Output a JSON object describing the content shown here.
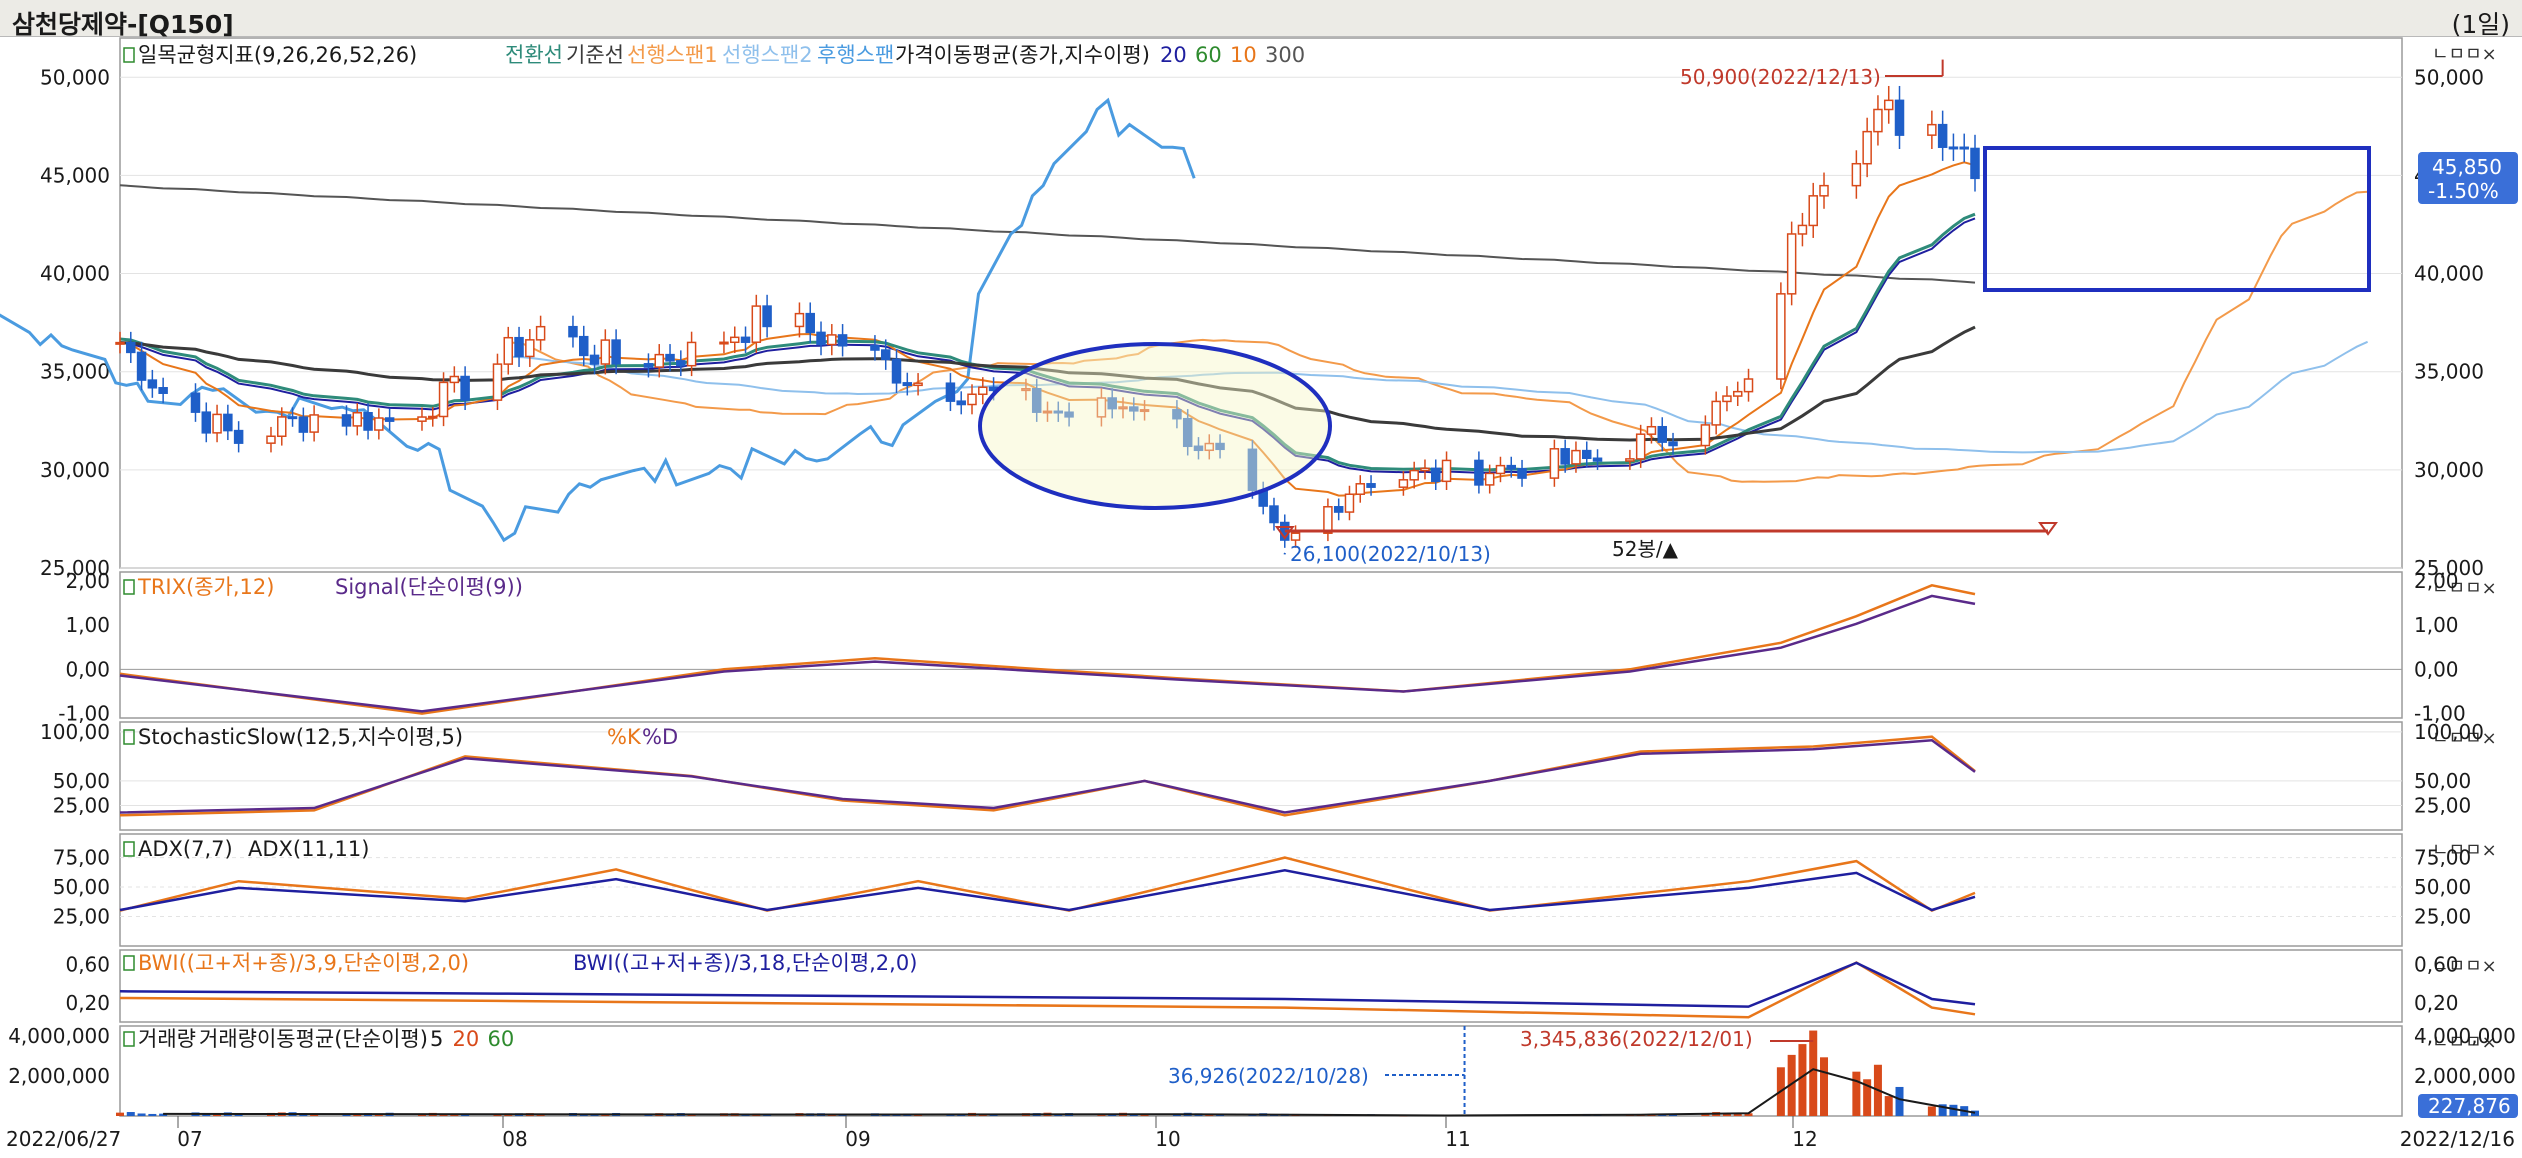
{
  "window": {
    "title": "삼천당제약-[Q150]",
    "period": "(1일)"
  },
  "dates": {
    "start": "2022/06/27",
    "end": "2022/12/16",
    "months": [
      "07",
      "08",
      "09",
      "10",
      "11",
      "12"
    ]
  },
  "panel_buttons": "ㄴㅁㅁ×",
  "price_panel": {
    "legend": [
      {
        "text": "일목균형지표(9,26,26,52,26)",
        "color": "#1a1a1a"
      },
      {
        "text": "전환선",
        "color": "#2e8b7a"
      },
      {
        "text": "기준선",
        "color": "#3a3a3a"
      },
      {
        "text": "선행스팬1",
        "color": "#f39a4a"
      },
      {
        "text": "선행스팬2",
        "color": "#8fc0ec"
      },
      {
        "text": "후행스팬",
        "color": "#4a9be0"
      },
      {
        "text": "가격이동평균(종가,지수이평)",
        "color": "#1a1a1a"
      },
      {
        "text": "20",
        "color": "#1f1f9f"
      },
      {
        "text": "60",
        "color": "#2e8b2e"
      },
      {
        "text": "10",
        "color": "#e8761a"
      },
      {
        "text": "300",
        "color": "#555555"
      }
    ],
    "y_ticks": [
      "50,000",
      "45,000",
      "40,000",
      "35,000",
      "30,000",
      "25,000"
    ],
    "last_price": "45,850",
    "last_change": "-1.50%",
    "high_annotation": "50,900(2022/12/13)",
    "low_annotation": "26,100(2022/10/13)",
    "range_label": "52봉/▲"
  },
  "trix_panel": {
    "legend": [
      {
        "text": "TRIX(종가,12)",
        "color": "#e8761a"
      },
      {
        "text": "Signal(단순이평(9))",
        "color": "#5a2a8a"
      }
    ],
    "y_ticks": [
      "2,00",
      "1,00",
      "0,00",
      "-1,00"
    ]
  },
  "stoch_panel": {
    "legend": [
      {
        "text": "StochasticSlow(12,5,지수이평,5)",
        "color": "#1a1a1a"
      },
      {
        "text": "%K",
        "color": "#e8761a"
      },
      {
        "text": "%D",
        "color": "#5a2a8a"
      }
    ],
    "y_ticks": [
      "100,00",
      "50,00",
      "25,00"
    ]
  },
  "adx_panel": {
    "legend": [
      {
        "text": "ADX(7,7)",
        "color": "#1a1a1a"
      },
      {
        "text": "ADX(11,11)",
        "color": "#1a1a1a"
      }
    ],
    "y_ticks": [
      "75,00",
      "50,00",
      "25,00"
    ]
  },
  "bwi_panel": {
    "legend": [
      {
        "text": "BWI((고+저+종)/3,9,단순이평,2,0)",
        "color": "#e8761a"
      },
      {
        "text": "BWI((고+저+종)/3,18,단순이평,2,0)",
        "color": "#1f1f9f"
      }
    ],
    "y_ticks": [
      "0,60",
      "0,20"
    ]
  },
  "volume_panel": {
    "legend": [
      {
        "text": "거래량",
        "color": "#1a1a1a"
      },
      {
        "text": "거래량이동평균(단순이평)",
        "color": "#1a1a1a"
      },
      {
        "text": "5",
        "color": "#1a1a1a"
      },
      {
        "text": "20",
        "color": "#d84a1a"
      },
      {
        "text": "60",
        "color": "#2e8b2e"
      }
    ],
    "y_ticks": [
      "4,000,000",
      "2,000,000"
    ],
    "last_volume": "227,876",
    "max_annotation": "3,345,836(2022/12/01)",
    "min_annotation": "36,926(2022/10/28)"
  },
  "chart_data": {
    "type": "candlestick",
    "period": "daily",
    "x_range": [
      "2022/06/27",
      "2022/12/16"
    ],
    "price_axis": [
      25000,
      52000
    ],
    "close_points": [
      [
        "2022/06/27",
        36500
      ],
      [
        "2022/07/01",
        34000
      ],
      [
        "2022/07/08",
        31500
      ],
      [
        "2022/07/15",
        32800
      ],
      [
        "2022/07/22",
        32500
      ],
      [
        "2022/07/29",
        34200
      ],
      [
        "2022/08/05",
        37200
      ],
      [
        "2022/08/12",
        35500
      ],
      [
        "2022/08/19",
        36000
      ],
      [
        "2022/08/26",
        37800
      ],
      [
        "2022/09/02",
        36500
      ],
      [
        "2022/09/09",
        34500
      ],
      [
        "2022/09/16",
        33800
      ],
      [
        "2022/09/23",
        32800
      ],
      [
        "2022/09/30",
        33500
      ],
      [
        "2022/10/07",
        30500
      ],
      [
        "2022/10/13",
        26100
      ],
      [
        "2022/10/20",
        29500
      ],
      [
        "2022/10/28",
        29800
      ],
      [
        "2022/11/04",
        30200
      ],
      [
        "2022/11/11",
        30500
      ],
      [
        "2022/11/18",
        32000
      ],
      [
        "2022/11/25",
        34000
      ],
      [
        "2022/12/01",
        45000
      ],
      [
        "2022/12/08",
        48000
      ],
      [
        "2022/12/13",
        47500
      ],
      [
        "2022/12/16",
        45850
      ]
    ],
    "high": {
      "date": "2022/12/13",
      "value": 50900
    },
    "low": {
      "date": "2022/10/13",
      "value": 26100
    },
    "volume_axis": [
      0,
      4500000
    ],
    "volume_points": [
      [
        "2022/07/01",
        150000
      ],
      [
        "2022/08/01",
        120000
      ],
      [
        "2022/09/01",
        110000
      ],
      [
        "2022/10/03",
        130000
      ],
      [
        "2022/10/28",
        36926
      ],
      [
        "2022/11/15",
        90000
      ],
      [
        "2022/11/25",
        200000
      ],
      [
        "2022/12/01",
        3345836
      ],
      [
        "2022/12/05",
        2500000
      ],
      [
        "2022/12/09",
        1200000
      ],
      [
        "2022/12/16",
        227876
      ]
    ],
    "trix_axis": [
      -1.1,
      2.2
    ],
    "trix_points": [
      [
        "2022/06/27",
        -0.1
      ],
      [
        "2022/07/25",
        -1.0
      ],
      [
        "2022/08/22",
        0.0
      ],
      [
        "2022/09/05",
        0.25
      ],
      [
        "2022/10/03",
        -0.2
      ],
      [
        "2022/10/24",
        -0.5
      ],
      [
        "2022/11/14",
        0.0
      ],
      [
        "2022/11/28",
        0.6
      ],
      [
        "2022/12/05",
        1.2
      ],
      [
        "2022/12/12",
        1.9
      ],
      [
        "2022/12/16",
        1.7
      ]
    ],
    "stochastic_axis": [
      0,
      110
    ],
    "stochastic_k_points": [
      [
        "2022/06/27",
        15
      ],
      [
        "2022/07/15",
        20
      ],
      [
        "2022/07/29",
        75
      ],
      [
        "2022/08/19",
        55
      ],
      [
        "2022/09/02",
        30
      ],
      [
        "2022/09/16",
        20
      ],
      [
        "2022/09/30",
        50
      ],
      [
        "2022/10/13",
        15
      ],
      [
        "2022/11/01",
        50
      ],
      [
        "2022/11/15",
        80
      ],
      [
        "2022/12/01",
        85
      ],
      [
        "2022/12/12",
        95
      ],
      [
        "2022/12/16",
        60
      ]
    ],
    "adx_axis": [
      0,
      95
    ],
    "adx7_points": [
      [
        "2022/06/27",
        30
      ],
      [
        "2022/07/08",
        55
      ],
      [
        "2022/07/29",
        40
      ],
      [
        "2022/08/12",
        65
      ],
      [
        "2022/08/26",
        30
      ],
      [
        "2022/09/09",
        55
      ],
      [
        "2022/09/23",
        30
      ],
      [
        "2022/10/13",
        75
      ],
      [
        "2022/11/01",
        30
      ],
      [
        "2022/11/25",
        55
      ],
      [
        "2022/12/05",
        72
      ],
      [
        "2022/12/12",
        30
      ],
      [
        "2022/12/16",
        45
      ]
    ],
    "bwi_axis": [
      0,
      0.75
    ],
    "bwi9_points": [
      [
        "2022/06/27",
        0.25
      ],
      [
        "2022/08/01",
        0.22
      ],
      [
        "2022/10/13",
        0.15
      ],
      [
        "2022/11/25",
        0.05
      ],
      [
        "2022/12/05",
        0.62
      ],
      [
        "2022/12/12",
        0.15
      ],
      [
        "2022/12/16",
        0.08
      ]
    ]
  }
}
